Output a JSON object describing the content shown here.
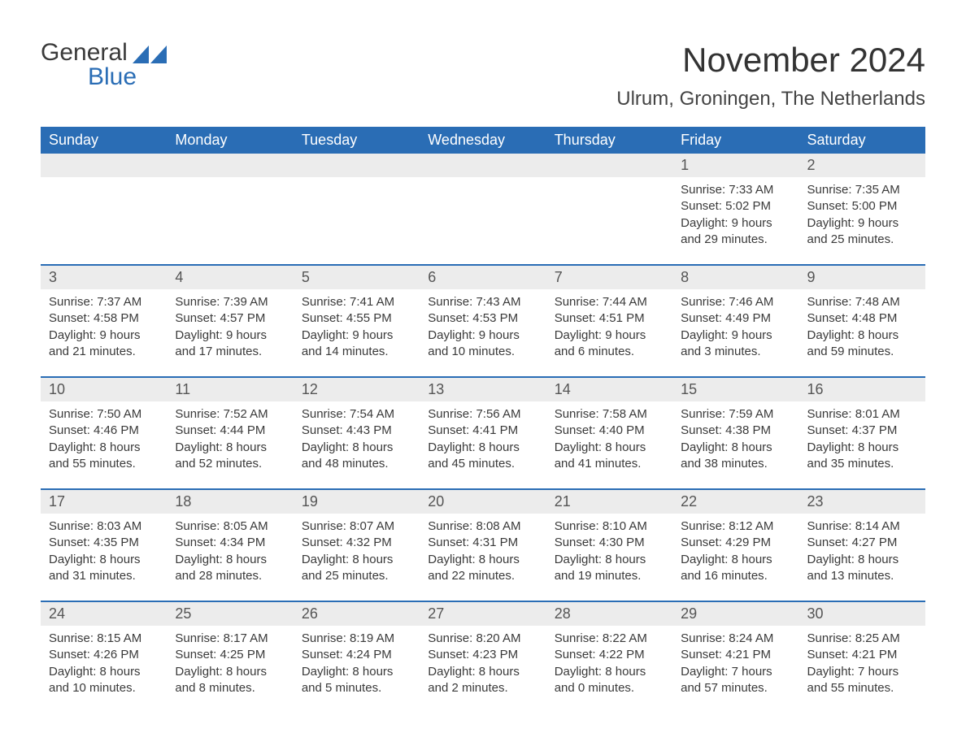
{
  "logo": {
    "text_general": "General",
    "text_blue": "Blue",
    "shape_color": "#2a6db5",
    "text_color": "#3a3a3a"
  },
  "header": {
    "month_title": "November 2024",
    "location": "Ulrum, Groningen, The Netherlands"
  },
  "colors": {
    "header_bg": "#2a6db5",
    "header_text": "#ffffff",
    "daynum_bg": "#ececec",
    "body_text": "#3a3a3a",
    "border": "#2a6db5"
  },
  "weekdays": [
    "Sunday",
    "Monday",
    "Tuesday",
    "Wednesday",
    "Thursday",
    "Friday",
    "Saturday"
  ],
  "weeks": [
    [
      {
        "blank": true
      },
      {
        "blank": true
      },
      {
        "blank": true
      },
      {
        "blank": true
      },
      {
        "blank": true
      },
      {
        "day": "1",
        "sunrise": "Sunrise: 7:33 AM",
        "sunset": "Sunset: 5:02 PM",
        "daylight1": "Daylight: 9 hours",
        "daylight2": "and 29 minutes."
      },
      {
        "day": "2",
        "sunrise": "Sunrise: 7:35 AM",
        "sunset": "Sunset: 5:00 PM",
        "daylight1": "Daylight: 9 hours",
        "daylight2": "and 25 minutes."
      }
    ],
    [
      {
        "day": "3",
        "sunrise": "Sunrise: 7:37 AM",
        "sunset": "Sunset: 4:58 PM",
        "daylight1": "Daylight: 9 hours",
        "daylight2": "and 21 minutes."
      },
      {
        "day": "4",
        "sunrise": "Sunrise: 7:39 AM",
        "sunset": "Sunset: 4:57 PM",
        "daylight1": "Daylight: 9 hours",
        "daylight2": "and 17 minutes."
      },
      {
        "day": "5",
        "sunrise": "Sunrise: 7:41 AM",
        "sunset": "Sunset: 4:55 PM",
        "daylight1": "Daylight: 9 hours",
        "daylight2": "and 14 minutes."
      },
      {
        "day": "6",
        "sunrise": "Sunrise: 7:43 AM",
        "sunset": "Sunset: 4:53 PM",
        "daylight1": "Daylight: 9 hours",
        "daylight2": "and 10 minutes."
      },
      {
        "day": "7",
        "sunrise": "Sunrise: 7:44 AM",
        "sunset": "Sunset: 4:51 PM",
        "daylight1": "Daylight: 9 hours",
        "daylight2": "and 6 minutes."
      },
      {
        "day": "8",
        "sunrise": "Sunrise: 7:46 AM",
        "sunset": "Sunset: 4:49 PM",
        "daylight1": "Daylight: 9 hours",
        "daylight2": "and 3 minutes."
      },
      {
        "day": "9",
        "sunrise": "Sunrise: 7:48 AM",
        "sunset": "Sunset: 4:48 PM",
        "daylight1": "Daylight: 8 hours",
        "daylight2": "and 59 minutes."
      }
    ],
    [
      {
        "day": "10",
        "sunrise": "Sunrise: 7:50 AM",
        "sunset": "Sunset: 4:46 PM",
        "daylight1": "Daylight: 8 hours",
        "daylight2": "and 55 minutes."
      },
      {
        "day": "11",
        "sunrise": "Sunrise: 7:52 AM",
        "sunset": "Sunset: 4:44 PM",
        "daylight1": "Daylight: 8 hours",
        "daylight2": "and 52 minutes."
      },
      {
        "day": "12",
        "sunrise": "Sunrise: 7:54 AM",
        "sunset": "Sunset: 4:43 PM",
        "daylight1": "Daylight: 8 hours",
        "daylight2": "and 48 minutes."
      },
      {
        "day": "13",
        "sunrise": "Sunrise: 7:56 AM",
        "sunset": "Sunset: 4:41 PM",
        "daylight1": "Daylight: 8 hours",
        "daylight2": "and 45 minutes."
      },
      {
        "day": "14",
        "sunrise": "Sunrise: 7:58 AM",
        "sunset": "Sunset: 4:40 PM",
        "daylight1": "Daylight: 8 hours",
        "daylight2": "and 41 minutes."
      },
      {
        "day": "15",
        "sunrise": "Sunrise: 7:59 AM",
        "sunset": "Sunset: 4:38 PM",
        "daylight1": "Daylight: 8 hours",
        "daylight2": "and 38 minutes."
      },
      {
        "day": "16",
        "sunrise": "Sunrise: 8:01 AM",
        "sunset": "Sunset: 4:37 PM",
        "daylight1": "Daylight: 8 hours",
        "daylight2": "and 35 minutes."
      }
    ],
    [
      {
        "day": "17",
        "sunrise": "Sunrise: 8:03 AM",
        "sunset": "Sunset: 4:35 PM",
        "daylight1": "Daylight: 8 hours",
        "daylight2": "and 31 minutes."
      },
      {
        "day": "18",
        "sunrise": "Sunrise: 8:05 AM",
        "sunset": "Sunset: 4:34 PM",
        "daylight1": "Daylight: 8 hours",
        "daylight2": "and 28 minutes."
      },
      {
        "day": "19",
        "sunrise": "Sunrise: 8:07 AM",
        "sunset": "Sunset: 4:32 PM",
        "daylight1": "Daylight: 8 hours",
        "daylight2": "and 25 minutes."
      },
      {
        "day": "20",
        "sunrise": "Sunrise: 8:08 AM",
        "sunset": "Sunset: 4:31 PM",
        "daylight1": "Daylight: 8 hours",
        "daylight2": "and 22 minutes."
      },
      {
        "day": "21",
        "sunrise": "Sunrise: 8:10 AM",
        "sunset": "Sunset: 4:30 PM",
        "daylight1": "Daylight: 8 hours",
        "daylight2": "and 19 minutes."
      },
      {
        "day": "22",
        "sunrise": "Sunrise: 8:12 AM",
        "sunset": "Sunset: 4:29 PM",
        "daylight1": "Daylight: 8 hours",
        "daylight2": "and 16 minutes."
      },
      {
        "day": "23",
        "sunrise": "Sunrise: 8:14 AM",
        "sunset": "Sunset: 4:27 PM",
        "daylight1": "Daylight: 8 hours",
        "daylight2": "and 13 minutes."
      }
    ],
    [
      {
        "day": "24",
        "sunrise": "Sunrise: 8:15 AM",
        "sunset": "Sunset: 4:26 PM",
        "daylight1": "Daylight: 8 hours",
        "daylight2": "and 10 minutes."
      },
      {
        "day": "25",
        "sunrise": "Sunrise: 8:17 AM",
        "sunset": "Sunset: 4:25 PM",
        "daylight1": "Daylight: 8 hours",
        "daylight2": "and 8 minutes."
      },
      {
        "day": "26",
        "sunrise": "Sunrise: 8:19 AM",
        "sunset": "Sunset: 4:24 PM",
        "daylight1": "Daylight: 8 hours",
        "daylight2": "and 5 minutes."
      },
      {
        "day": "27",
        "sunrise": "Sunrise: 8:20 AM",
        "sunset": "Sunset: 4:23 PM",
        "daylight1": "Daylight: 8 hours",
        "daylight2": "and 2 minutes."
      },
      {
        "day": "28",
        "sunrise": "Sunrise: 8:22 AM",
        "sunset": "Sunset: 4:22 PM",
        "daylight1": "Daylight: 8 hours",
        "daylight2": "and 0 minutes."
      },
      {
        "day": "29",
        "sunrise": "Sunrise: 8:24 AM",
        "sunset": "Sunset: 4:21 PM",
        "daylight1": "Daylight: 7 hours",
        "daylight2": "and 57 minutes."
      },
      {
        "day": "30",
        "sunrise": "Sunrise: 8:25 AM",
        "sunset": "Sunset: 4:21 PM",
        "daylight1": "Daylight: 7 hours",
        "daylight2": "and 55 minutes."
      }
    ]
  ]
}
